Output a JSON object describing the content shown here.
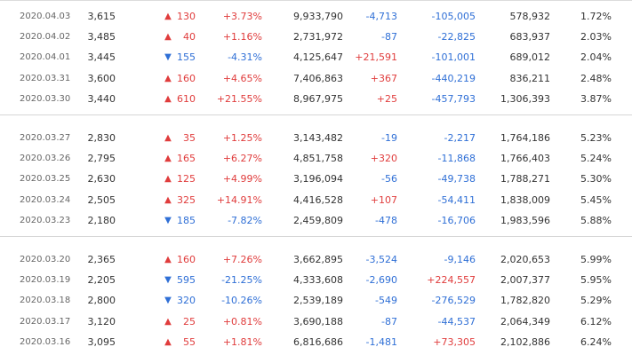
{
  "colors": {
    "up": "#e03c3c",
    "down": "#2f6fd6",
    "text": "#333333",
    "date": "#666666",
    "divider": "#d6d6d6"
  },
  "icons": {
    "up": "triangle-up-icon",
    "down": "triangle-down-icon"
  },
  "groups": [
    {
      "rows": [
        {
          "date": "2020.04.03",
          "close": "3,615",
          "dir": "up",
          "arrow": "▲",
          "change": "130",
          "pct": "+3.73%",
          "volume": "9,933,790",
          "f1": "-4,713",
          "f1_dir": "down",
          "f2": "-105,005",
          "f2_dir": "down",
          "f3": "578,932",
          "f4": "1.72%"
        },
        {
          "date": "2020.04.02",
          "close": "3,485",
          "dir": "up",
          "arrow": "▲",
          "change": "40",
          "pct": "+1.16%",
          "volume": "2,731,972",
          "f1": "-87",
          "f1_dir": "down",
          "f2": "-22,825",
          "f2_dir": "down",
          "f3": "683,937",
          "f4": "2.03%"
        },
        {
          "date": "2020.04.01",
          "close": "3,445",
          "dir": "down",
          "arrow": "▼",
          "change": "155",
          "pct": "-4.31%",
          "volume": "4,125,647",
          "f1": "+21,591",
          "f1_dir": "up",
          "f2": "-101,001",
          "f2_dir": "down",
          "f3": "689,012",
          "f4": "2.04%"
        },
        {
          "date": "2020.03.31",
          "close": "3,600",
          "dir": "up",
          "arrow": "▲",
          "change": "160",
          "pct": "+4.65%",
          "volume": "7,406,863",
          "f1": "+367",
          "f1_dir": "up",
          "f2": "-440,219",
          "f2_dir": "down",
          "f3": "836,211",
          "f4": "2.48%"
        },
        {
          "date": "2020.03.30",
          "close": "3,440",
          "dir": "up",
          "arrow": "▲",
          "change": "610",
          "pct": "+21.55%",
          "volume": "8,967,975",
          "f1": "+25",
          "f1_dir": "up",
          "f2": "-457,793",
          "f2_dir": "down",
          "f3": "1,306,393",
          "f4": "3.87%"
        }
      ]
    },
    {
      "rows": [
        {
          "date": "2020.03.27",
          "close": "2,830",
          "dir": "up",
          "arrow": "▲",
          "change": "35",
          "pct": "+1.25%",
          "volume": "3,143,482",
          "f1": "-19",
          "f1_dir": "down",
          "f2": "-2,217",
          "f2_dir": "down",
          "f3": "1,764,186",
          "f4": "5.23%"
        },
        {
          "date": "2020.03.26",
          "close": "2,795",
          "dir": "up",
          "arrow": "▲",
          "change": "165",
          "pct": "+6.27%",
          "volume": "4,851,758",
          "f1": "+320",
          "f1_dir": "up",
          "f2": "-11,868",
          "f2_dir": "down",
          "f3": "1,766,403",
          "f4": "5.24%"
        },
        {
          "date": "2020.03.25",
          "close": "2,630",
          "dir": "up",
          "arrow": "▲",
          "change": "125",
          "pct": "+4.99%",
          "volume": "3,196,094",
          "f1": "-56",
          "f1_dir": "down",
          "f2": "-49,738",
          "f2_dir": "down",
          "f3": "1,788,271",
          "f4": "5.30%"
        },
        {
          "date": "2020.03.24",
          "close": "2,505",
          "dir": "up",
          "arrow": "▲",
          "change": "325",
          "pct": "+14.91%",
          "volume": "4,416,528",
          "f1": "+107",
          "f1_dir": "up",
          "f2": "-54,411",
          "f2_dir": "down",
          "f3": "1,838,009",
          "f4": "5.45%"
        },
        {
          "date": "2020.03.23",
          "close": "2,180",
          "dir": "down",
          "arrow": "▼",
          "change": "185",
          "pct": "-7.82%",
          "volume": "2,459,809",
          "f1": "-478",
          "f1_dir": "down",
          "f2": "-16,706",
          "f2_dir": "down",
          "f3": "1,983,596",
          "f4": "5.88%"
        }
      ]
    },
    {
      "rows": [
        {
          "date": "2020.03.20",
          "close": "2,365",
          "dir": "up",
          "arrow": "▲",
          "change": "160",
          "pct": "+7.26%",
          "volume": "3,662,895",
          "f1": "-3,524",
          "f1_dir": "down",
          "f2": "-9,146",
          "f2_dir": "down",
          "f3": "2,020,653",
          "f4": "5.99%"
        },
        {
          "date": "2020.03.19",
          "close": "2,205",
          "dir": "down",
          "arrow": "▼",
          "change": "595",
          "pct": "-21.25%",
          "volume": "4,333,608",
          "f1": "-2,690",
          "f1_dir": "down",
          "f2": "+224,557",
          "f2_dir": "up",
          "f3": "2,007,377",
          "f4": "5.95%"
        },
        {
          "date": "2020.03.18",
          "close": "2,800",
          "dir": "down",
          "arrow": "▼",
          "change": "320",
          "pct": "-10.26%",
          "volume": "2,539,189",
          "f1": "-549",
          "f1_dir": "down",
          "f2": "-276,529",
          "f2_dir": "down",
          "f3": "1,782,820",
          "f4": "5.29%"
        },
        {
          "date": "2020.03.17",
          "close": "3,120",
          "dir": "up",
          "arrow": "▲",
          "change": "25",
          "pct": "+0.81%",
          "volume": "3,690,188",
          "f1": "-87",
          "f1_dir": "down",
          "f2": "-44,537",
          "f2_dir": "down",
          "f3": "2,064,349",
          "f4": "6.12%"
        },
        {
          "date": "2020.03.16",
          "close": "3,095",
          "dir": "up",
          "arrow": "▲",
          "change": "55",
          "pct": "+1.81%",
          "volume": "6,816,686",
          "f1": "-1,481",
          "f1_dir": "down",
          "f2": "+73,305",
          "f2_dir": "up",
          "f3": "2,102,886",
          "f4": "6.24%"
        }
      ]
    }
  ]
}
